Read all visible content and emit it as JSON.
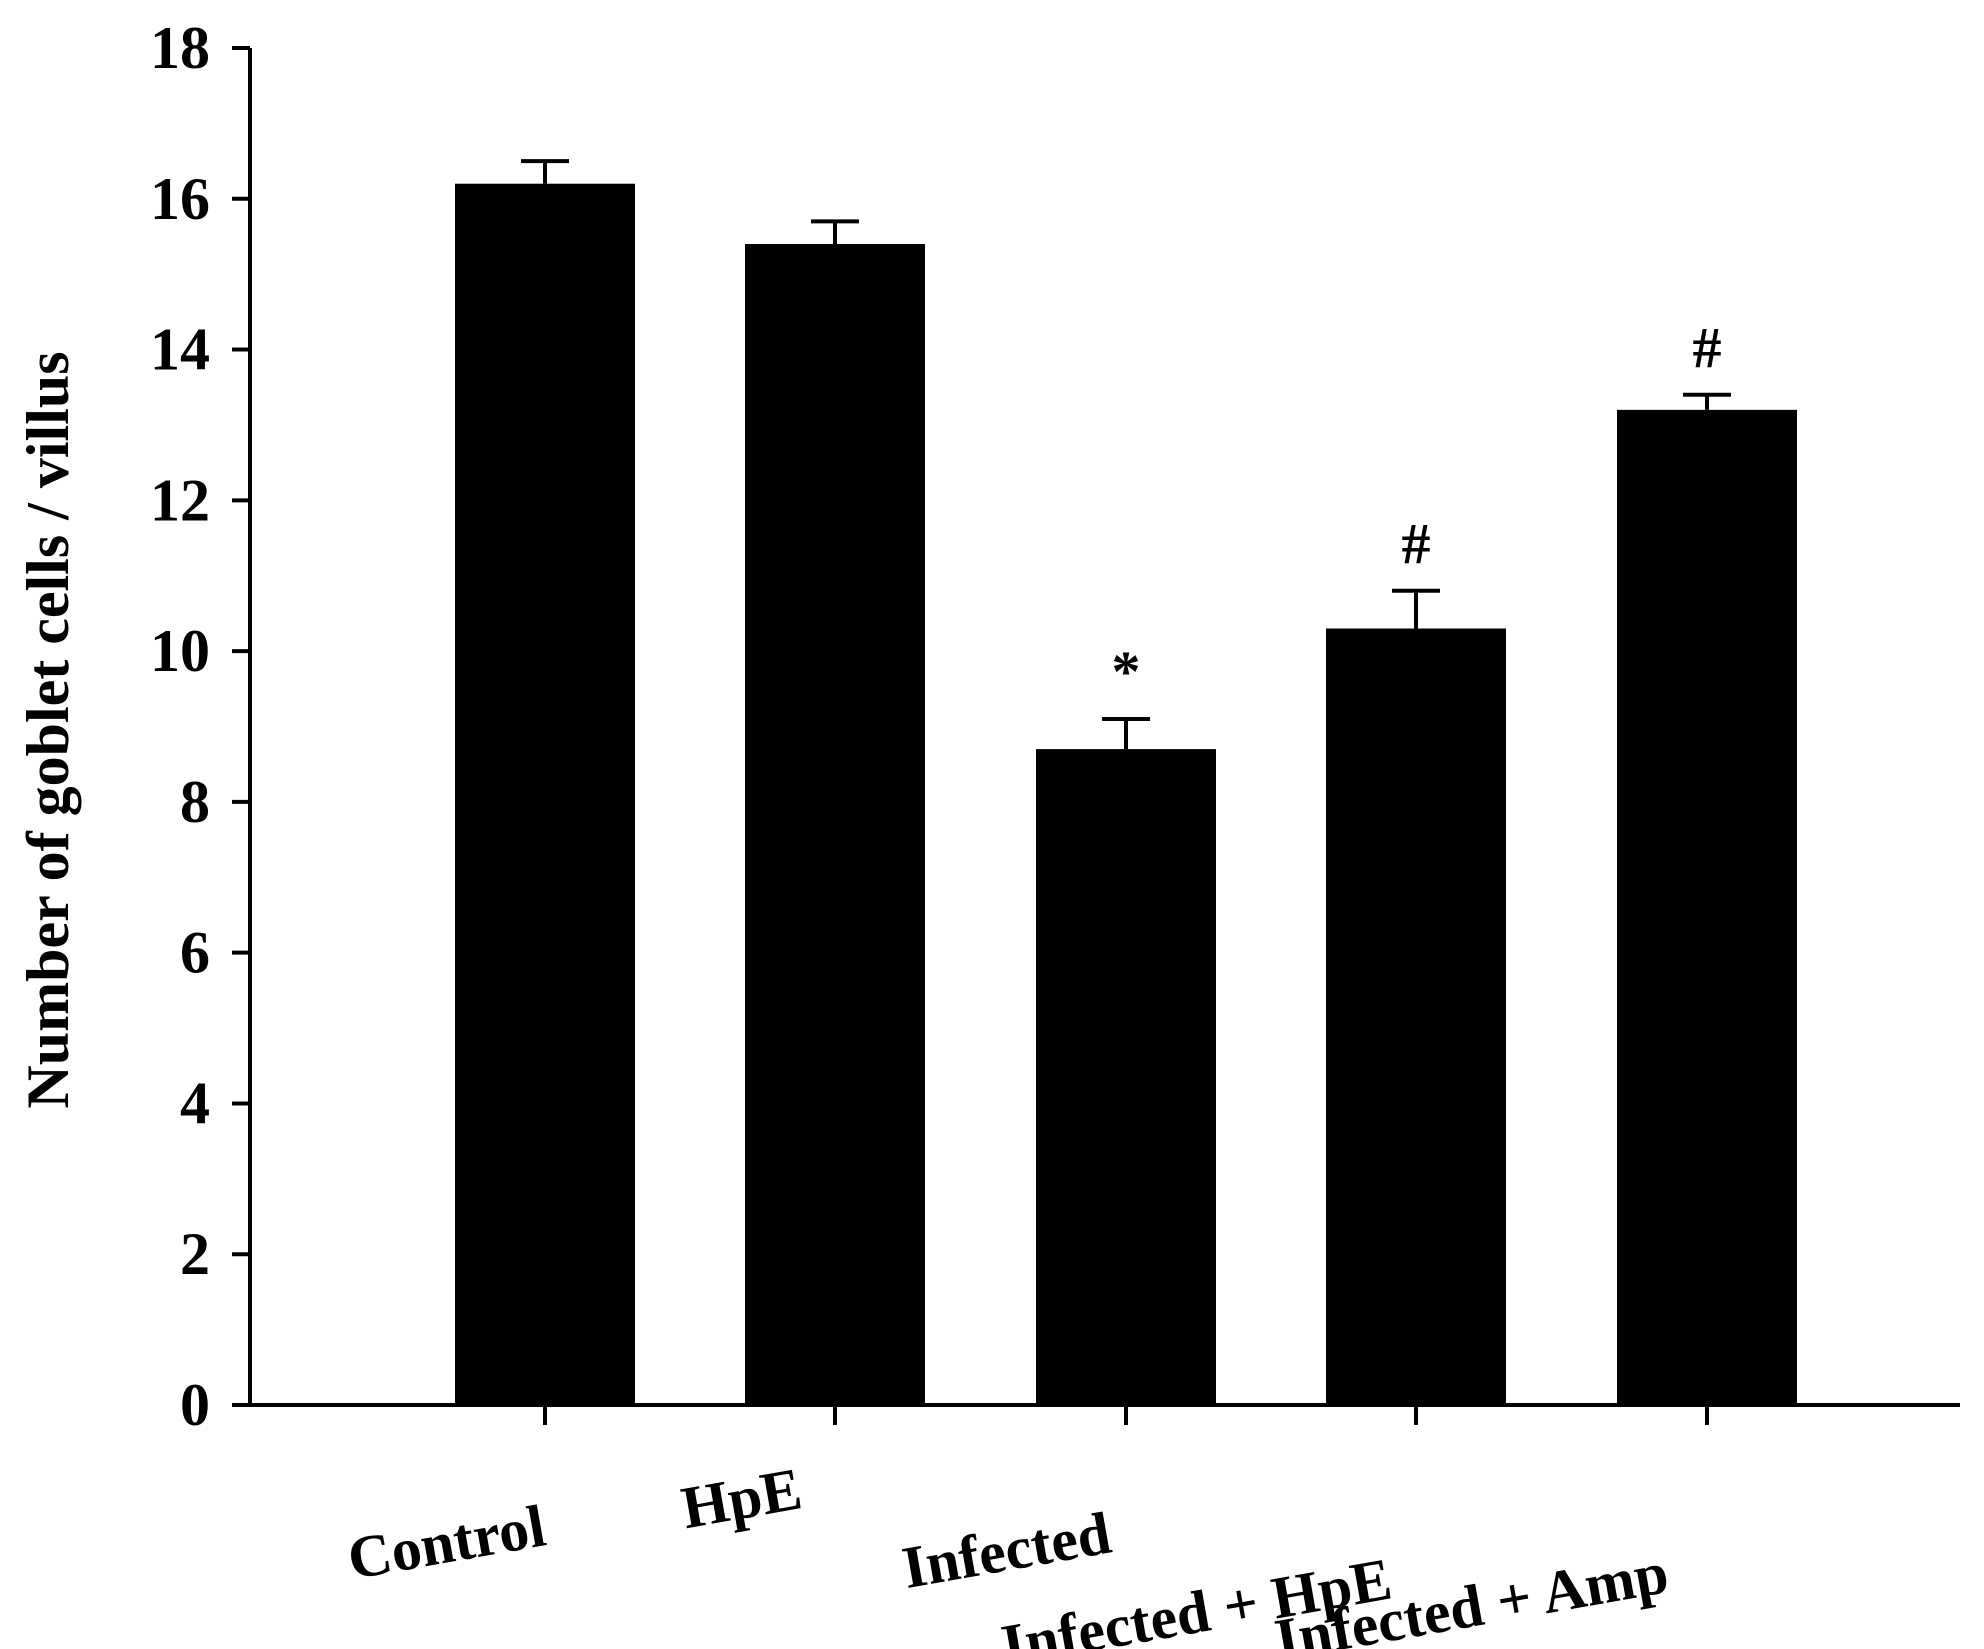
{
  "chart_data": {
    "type": "bar",
    "categories": [
      "Control",
      "HpE",
      "Infected",
      "Infected + HpE",
      "Infected + Amp"
    ],
    "values": [
      16.2,
      15.4,
      8.7,
      10.3,
      13.2
    ],
    "errors": [
      0.3,
      0.3,
      0.4,
      0.5,
      0.2
    ],
    "annotations": [
      "",
      "",
      "*",
      "#",
      "#"
    ],
    "xlabel": "",
    "ylabel": "Number of goblet cells / villus",
    "ylim": [
      0,
      18
    ],
    "yticks": [
      0,
      2,
      4,
      6,
      8,
      10,
      12,
      14,
      16,
      18
    ],
    "grid": false,
    "bar_color": "#000000"
  }
}
